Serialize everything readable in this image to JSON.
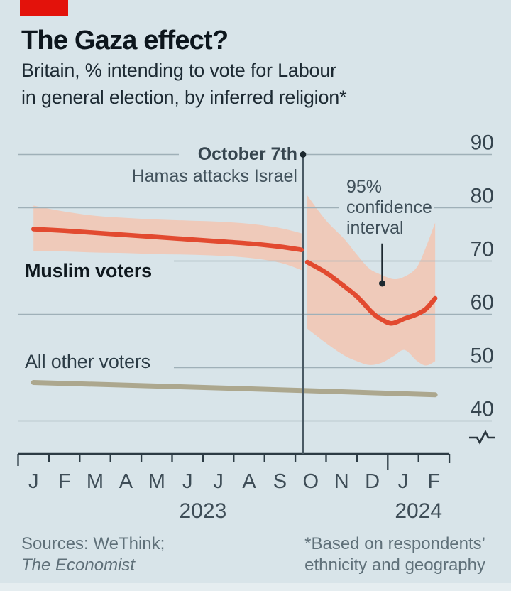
{
  "page": {
    "background": "#d8e4e9",
    "brand_tab_color": "#e3120b"
  },
  "header": {
    "title": "The Gaza effect?",
    "subtitle_line1": "Britain, % intending to vote for Labour",
    "subtitle_line2": "in general election, by inferred religion*"
  },
  "footer": {
    "sources_line1": "Sources: WeThink;",
    "sources_line2": "The Economist",
    "footnote_line1": "*Based on respondents’",
    "footnote_line2": "ethnicity and geography"
  },
  "chart_data": {
    "type": "line",
    "title": "The Gaza effect?",
    "subtitle": "Britain, % intending to vote for Labour in general election, by inferred religion*",
    "x_axis": {
      "month_labels": [
        "J",
        "F",
        "M",
        "A",
        "M",
        "J",
        "J",
        "A",
        "S",
        "O",
        "N",
        "D",
        "J",
        "F"
      ],
      "year_labels": [
        "2023",
        "2024"
      ],
      "range": "Jan 2023 - Feb 2024"
    },
    "y_axis": {
      "ticks": [
        90,
        80,
        70,
        60,
        50,
        40
      ],
      "unit": "%",
      "axis_break": true
    },
    "event_line": {
      "label_bold": "October 7th",
      "label_regular": "Hamas attacks Israel",
      "x_month": 9.25
    },
    "ci_label": {
      "line1": "95%",
      "line2": "confidence",
      "line3": "interval"
    },
    "pointer": {
      "x_month": 11.82,
      "value_from": 73.3,
      "value_to": 65.8
    },
    "series": [
      {
        "name": "Muslim voters",
        "color": "#e24a30",
        "band_color": "#efcaba",
        "pre_event": {
          "x_months": [
            0.5,
            1.5,
            2.5,
            3.5,
            4.5,
            5.5,
            6.5,
            7.5,
            8.5,
            9.2
          ],
          "values": [
            76.0,
            75.7,
            75.3,
            74.9,
            74.5,
            74.1,
            73.7,
            73.3,
            72.7,
            72.1
          ]
        },
        "post_event": {
          "x_months": [
            9.39,
            10.0,
            10.58,
            10.93,
            11.16,
            11.5,
            11.78,
            12.13,
            12.55,
            12.94,
            13.24,
            13.54
          ],
          "values": [
            69.8,
            67.8,
            65.3,
            63.7,
            62.4,
            60.3,
            59.1,
            58.3,
            59.2,
            60.0,
            61.0,
            63.0
          ]
        },
        "ci_pre": {
          "x_months": [
            0.5,
            1.5,
            2.5,
            3.5,
            4.5,
            5.5,
            6.5,
            7.5,
            8.5,
            9.2
          ],
          "upper": [
            80.4,
            79.3,
            78.5,
            78.1,
            77.8,
            77.6,
            77.4,
            77.0,
            76.2,
            75.2
          ],
          "lower": [
            71.9,
            71.8,
            71.6,
            71.5,
            71.3,
            71.2,
            71.0,
            70.6,
            69.7,
            68.3
          ]
        },
        "ci_post": {
          "x_months": [
            9.39,
            10.0,
            10.58,
            11.0,
            11.4,
            11.8,
            12.2,
            12.55,
            12.94,
            13.24,
            13.54
          ],
          "upper": [
            82.3,
            77.6,
            74.2,
            71.2,
            68.6,
            67.4,
            66.6,
            67.1,
            68.8,
            72.6,
            77.2
          ],
          "lower": [
            57.3,
            54.6,
            52.3,
            51.2,
            50.5,
            50.9,
            52.2,
            53.3,
            51.3,
            50.4,
            51.2
          ]
        }
      },
      {
        "name": "All other voters",
        "color": "#aca78e",
        "x_months": [
          0.5,
          7.0,
          13.54
        ],
        "values": [
          47.2,
          46.1,
          44.9
        ]
      }
    ]
  }
}
